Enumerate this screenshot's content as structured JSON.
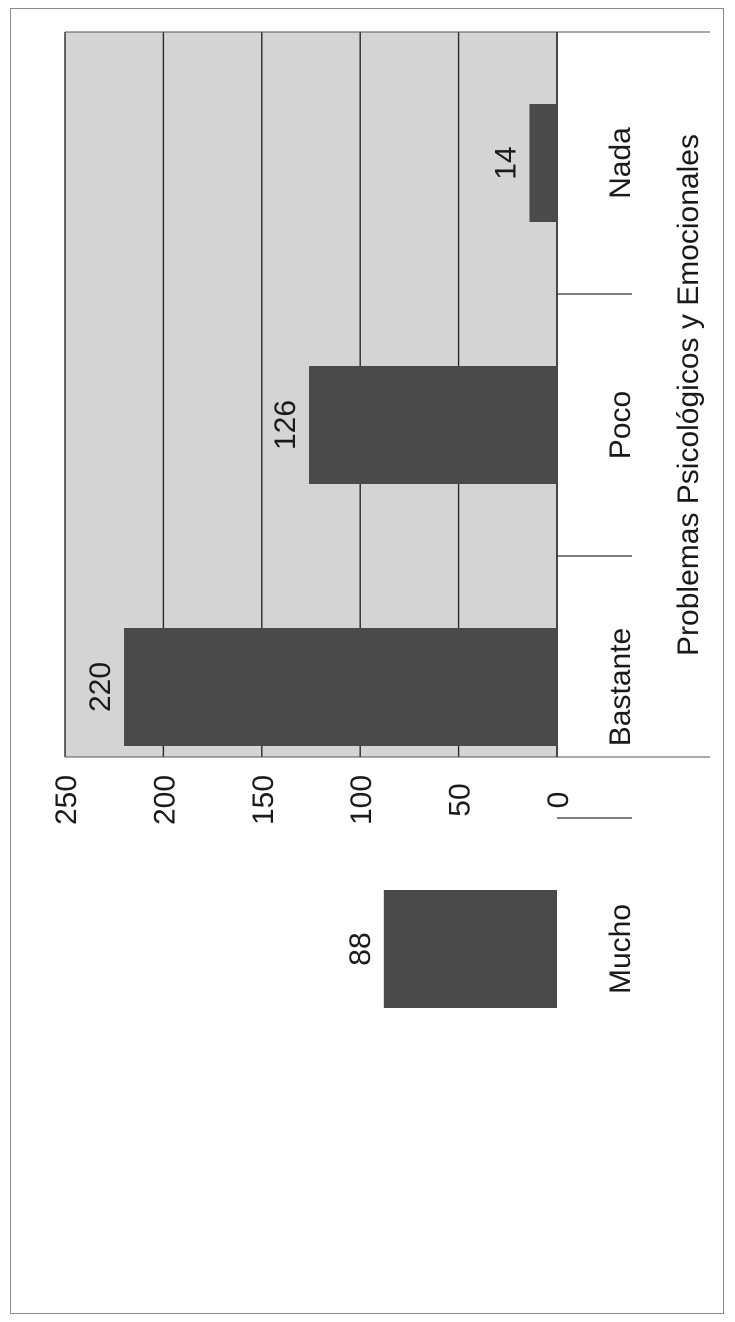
{
  "chart_data": {
    "type": "bar",
    "orientation": "vertical (figure rotated 90° counter-clockwise on the page)",
    "categories": [
      "Mucho",
      "Bastante",
      "Poco",
      "Nada"
    ],
    "values": [
      88,
      220,
      126,
      14
    ],
    "data_labels": [
      "88",
      "220",
      "126",
      "14"
    ],
    "xlabel": "Problemas Psicológicos y Emocionales",
    "ylabel": "",
    "ylim": [
      0,
      250
    ],
    "yticks": [
      0,
      50,
      100,
      150,
      200,
      250
    ],
    "ytick_labels": [
      "0",
      "50",
      "100",
      "150",
      "200",
      "250"
    ],
    "grid": true,
    "legend": "none",
    "colors": {
      "bar": "#4a4a4a",
      "plot_background": "#d4d4d4",
      "gridline": "#2a2a2a",
      "text": "#1a1a1a"
    }
  }
}
